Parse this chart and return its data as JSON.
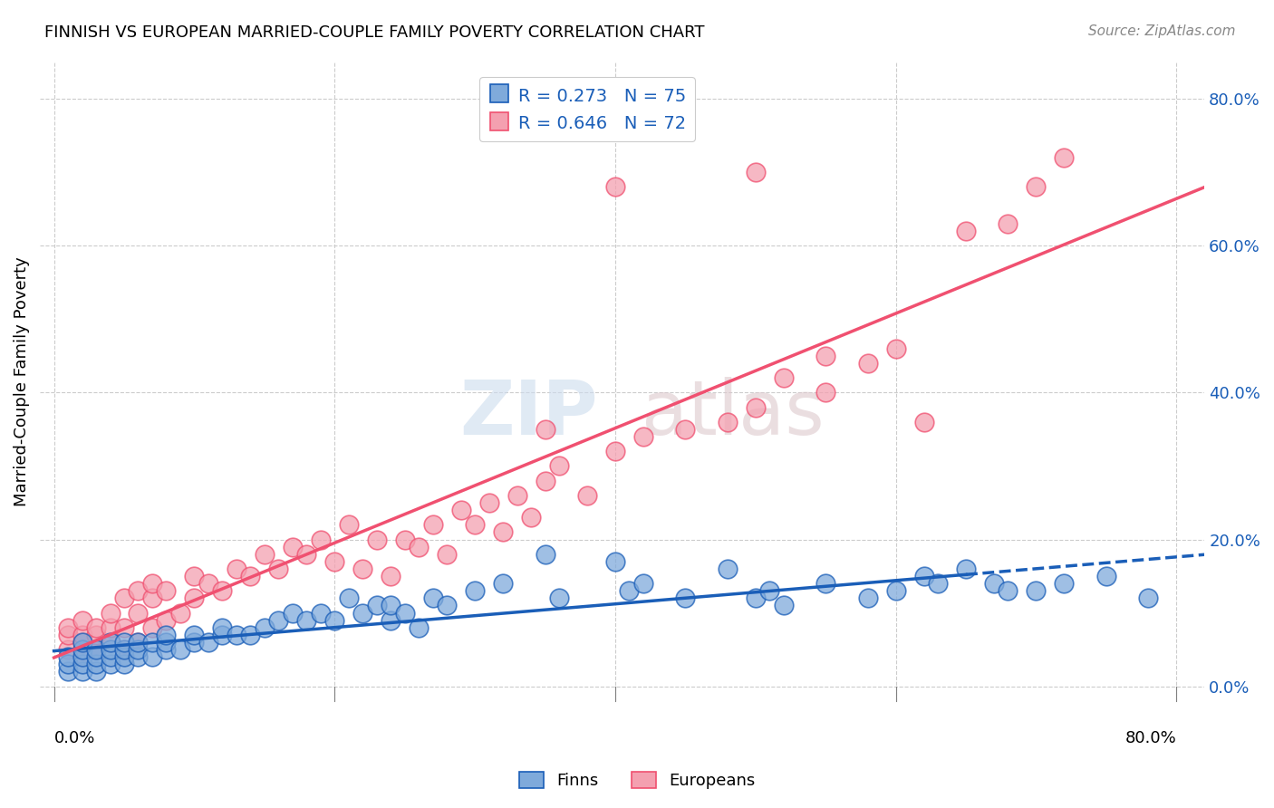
{
  "title": "FINNISH VS EUROPEAN MARRIED-COUPLE FAMILY POVERTY CORRELATION CHART",
  "source": "Source: ZipAtlas.com",
  "ylabel": "Married-Couple Family Poverty",
  "ytick_labels": [
    "0.0%",
    "20.0%",
    "40.0%",
    "60.0%",
    "80.0%"
  ],
  "ytick_values": [
    0.0,
    0.2,
    0.4,
    0.6,
    0.8
  ],
  "xtick_values": [
    0.0,
    0.2,
    0.4,
    0.6,
    0.8
  ],
  "legend_r_finns": "R = 0.273",
  "legend_n_finns": "N = 75",
  "legend_r_europeans": "R = 0.646",
  "legend_n_europeans": "N = 72",
  "finns_color": "#7faadb",
  "europeans_color": "#f4a0b0",
  "finns_line_color": "#1a5eb8",
  "europeans_line_color": "#f05070",
  "background_color": "#ffffff",
  "finns_scatter_x": [
    0.01,
    0.01,
    0.01,
    0.02,
    0.02,
    0.02,
    0.02,
    0.02,
    0.03,
    0.03,
    0.03,
    0.03,
    0.04,
    0.04,
    0.04,
    0.04,
    0.05,
    0.05,
    0.05,
    0.05,
    0.06,
    0.06,
    0.06,
    0.07,
    0.07,
    0.08,
    0.08,
    0.08,
    0.09,
    0.1,
    0.1,
    0.11,
    0.12,
    0.12,
    0.13,
    0.14,
    0.15,
    0.16,
    0.17,
    0.18,
    0.19,
    0.2,
    0.21,
    0.22,
    0.23,
    0.24,
    0.24,
    0.25,
    0.26,
    0.27,
    0.28,
    0.3,
    0.32,
    0.35,
    0.36,
    0.4,
    0.41,
    0.42,
    0.45,
    0.48,
    0.5,
    0.51,
    0.52,
    0.55,
    0.58,
    0.6,
    0.62,
    0.63,
    0.65,
    0.67,
    0.68,
    0.7,
    0.72,
    0.75,
    0.78
  ],
  "finns_scatter_y": [
    0.02,
    0.03,
    0.04,
    0.02,
    0.03,
    0.04,
    0.05,
    0.06,
    0.02,
    0.03,
    0.04,
    0.05,
    0.03,
    0.04,
    0.05,
    0.06,
    0.03,
    0.04,
    0.05,
    0.06,
    0.04,
    0.05,
    0.06,
    0.04,
    0.06,
    0.05,
    0.06,
    0.07,
    0.05,
    0.06,
    0.07,
    0.06,
    0.07,
    0.08,
    0.07,
    0.07,
    0.08,
    0.09,
    0.1,
    0.09,
    0.1,
    0.09,
    0.12,
    0.1,
    0.11,
    0.09,
    0.11,
    0.1,
    0.08,
    0.12,
    0.11,
    0.13,
    0.14,
    0.18,
    0.12,
    0.17,
    0.13,
    0.14,
    0.12,
    0.16,
    0.12,
    0.13,
    0.11,
    0.14,
    0.12,
    0.13,
    0.15,
    0.14,
    0.16,
    0.14,
    0.13,
    0.13,
    0.14,
    0.15,
    0.12
  ],
  "europeans_scatter_x": [
    0.01,
    0.01,
    0.01,
    0.02,
    0.02,
    0.02,
    0.02,
    0.03,
    0.03,
    0.03,
    0.04,
    0.04,
    0.04,
    0.05,
    0.05,
    0.05,
    0.06,
    0.06,
    0.06,
    0.07,
    0.07,
    0.07,
    0.08,
    0.08,
    0.09,
    0.1,
    0.1,
    0.11,
    0.12,
    0.13,
    0.14,
    0.15,
    0.16,
    0.17,
    0.18,
    0.19,
    0.2,
    0.21,
    0.22,
    0.23,
    0.24,
    0.25,
    0.26,
    0.27,
    0.28,
    0.29,
    0.3,
    0.31,
    0.32,
    0.33,
    0.34,
    0.35,
    0.36,
    0.38,
    0.4,
    0.42,
    0.45,
    0.48,
    0.5,
    0.52,
    0.55,
    0.58,
    0.6,
    0.62,
    0.65,
    0.68,
    0.7,
    0.72,
    0.35,
    0.4,
    0.5,
    0.55
  ],
  "europeans_scatter_y": [
    0.05,
    0.07,
    0.08,
    0.04,
    0.06,
    0.07,
    0.09,
    0.05,
    0.07,
    0.08,
    0.06,
    0.08,
    0.1,
    0.05,
    0.08,
    0.12,
    0.06,
    0.1,
    0.13,
    0.08,
    0.12,
    0.14,
    0.09,
    0.13,
    0.1,
    0.12,
    0.15,
    0.14,
    0.13,
    0.16,
    0.15,
    0.18,
    0.16,
    0.19,
    0.18,
    0.2,
    0.17,
    0.22,
    0.16,
    0.2,
    0.15,
    0.2,
    0.19,
    0.22,
    0.18,
    0.24,
    0.22,
    0.25,
    0.21,
    0.26,
    0.23,
    0.28,
    0.3,
    0.26,
    0.32,
    0.34,
    0.35,
    0.36,
    0.38,
    0.42,
    0.4,
    0.44,
    0.46,
    0.36,
    0.62,
    0.63,
    0.68,
    0.72,
    0.35,
    0.68,
    0.7,
    0.45
  ]
}
